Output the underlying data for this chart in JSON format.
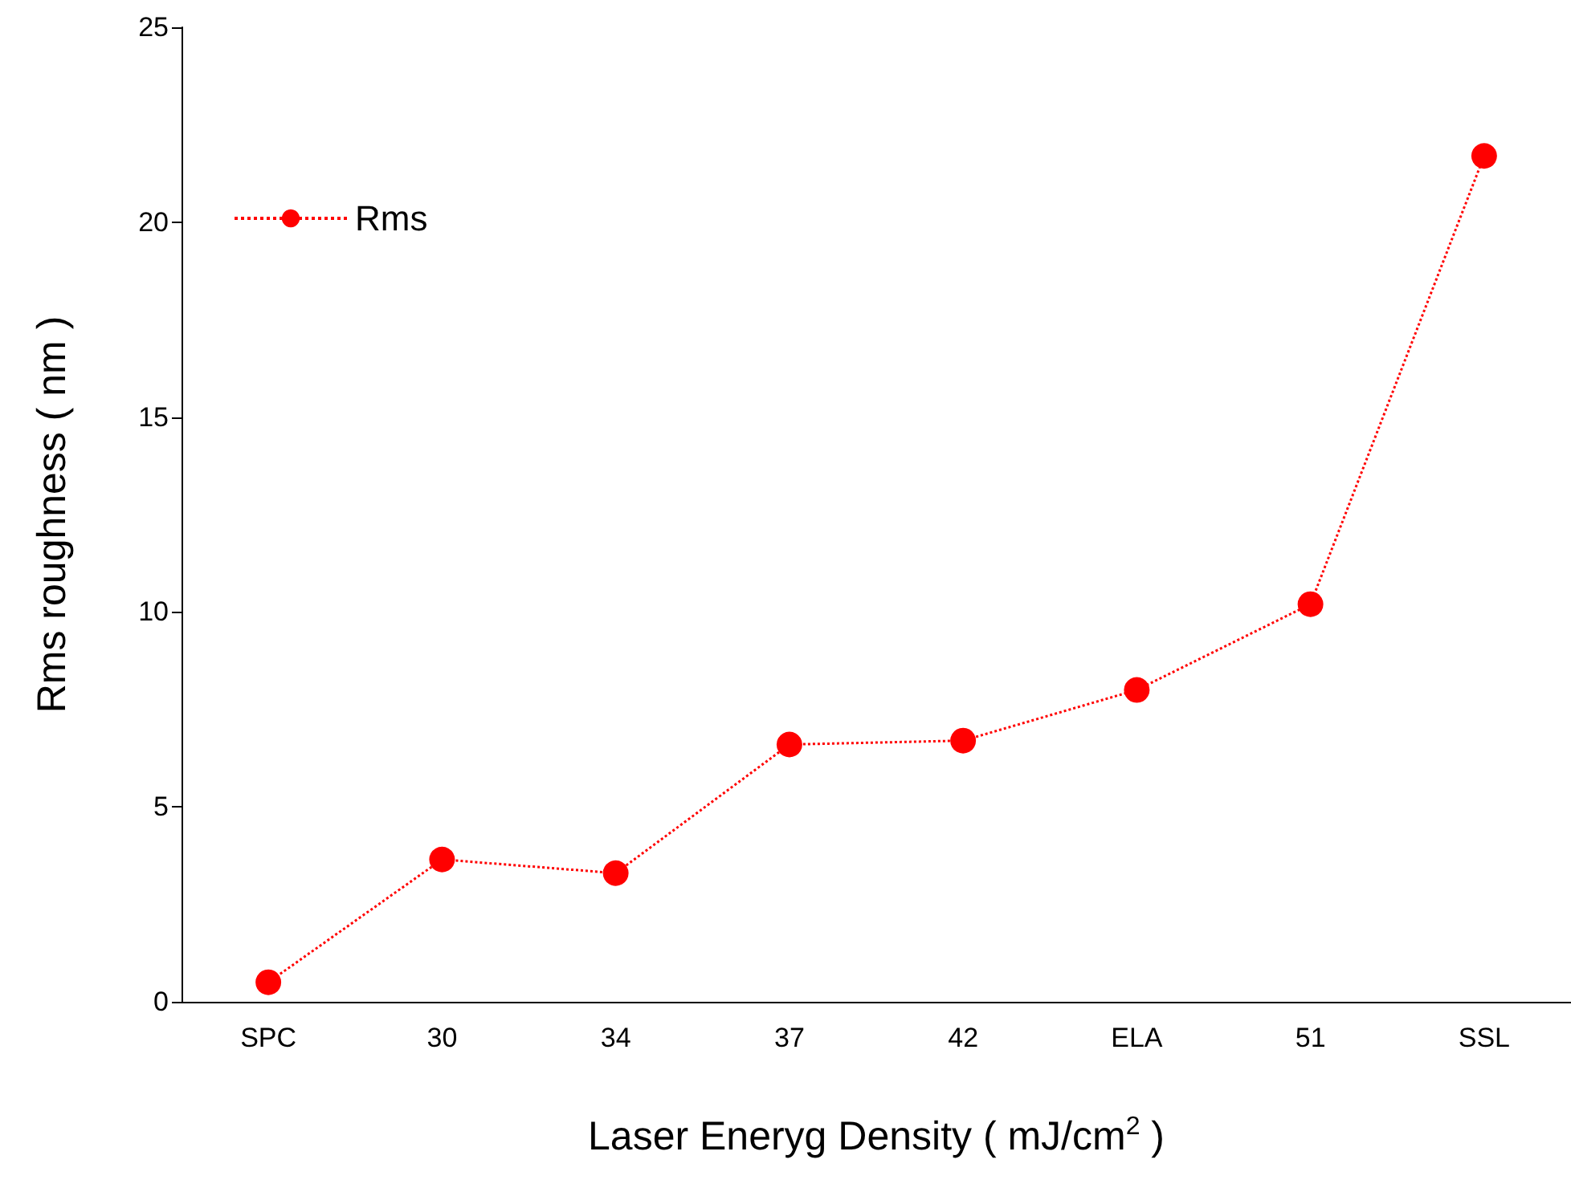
{
  "chart_data": {
    "type": "line",
    "xlabel": "Laser Eneryg Density ( mJ/cm$^{2}$ )",
    "ylabel": "Rms roughness ( nm )",
    "categories": [
      "SPC",
      "30",
      "34",
      "37",
      "42",
      "ELA",
      "51",
      "SSL"
    ],
    "series": [
      {
        "name": "Rms",
        "color": "#ff0000",
        "values": [
          0.5,
          3.65,
          3.3,
          6.6,
          6.7,
          8.0,
          10.2,
          21.7
        ]
      }
    ],
    "ylim": [
      0,
      25
    ],
    "yticks": [
      0,
      5,
      10,
      15,
      20,
      25
    ],
    "grid": false,
    "legend": "top left",
    "marker": "circle",
    "line_style": "dotted"
  }
}
